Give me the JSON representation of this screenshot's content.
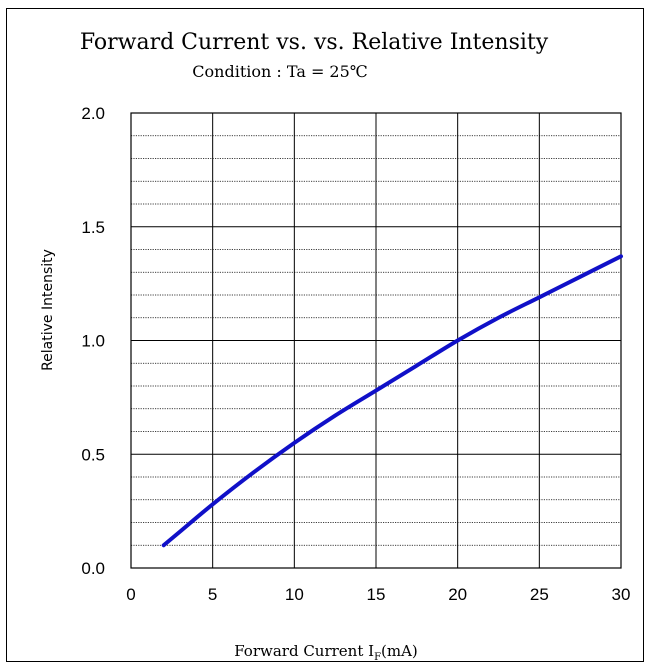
{
  "chart_data": {
    "type": "line",
    "title": "Forward Current vs. vs. Relative Intensity",
    "subtitle": "Condition : Ta = 25℃",
    "xlabel": {
      "main": "Forward Current I",
      "subscript": "F",
      "unit": "(mA)"
    },
    "ylabel": "Relative Intensity",
    "xlim": [
      0,
      30
    ],
    "ylim": [
      0,
      2.0
    ],
    "x_ticks": [
      "0",
      "5",
      "10",
      "15",
      "20",
      "25",
      "30"
    ],
    "y_ticks": [
      "0.0",
      "0.5",
      "1.0",
      "1.5",
      "2.0"
    ],
    "grid": true,
    "y_minor_divisions": 5,
    "series": [
      {
        "color": "#1010c8",
        "x": [
          2,
          3,
          5,
          7.5,
          10,
          12.5,
          15,
          17.5,
          20,
          22.5,
          25,
          27.5,
          30
        ],
        "y": [
          0.1,
          0.16,
          0.28,
          0.42,
          0.55,
          0.67,
          0.78,
          0.89,
          1.0,
          1.1,
          1.19,
          1.28,
          1.37
        ]
      }
    ]
  }
}
